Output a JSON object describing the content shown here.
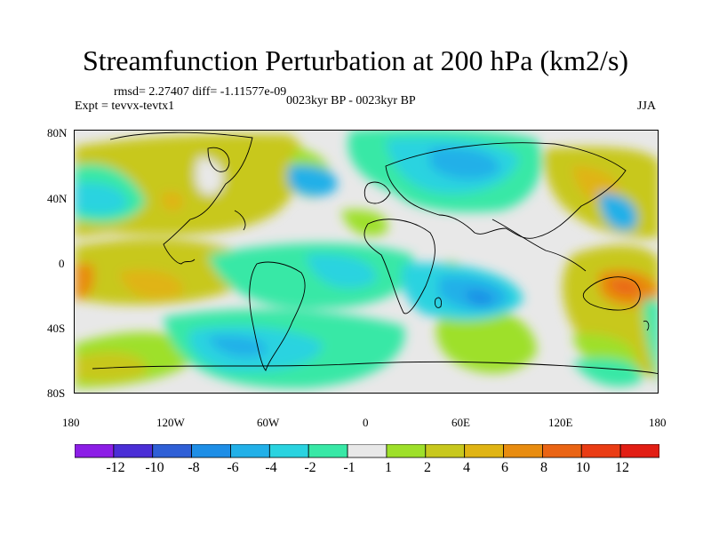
{
  "title": "Streamfunction Perturbation at 200 hPa (km2/s)",
  "stats_line": "rmsd= 2.27407 diff= -1.11577e-09",
  "experiment": "Expt = tevvx-tevtx1",
  "period": "0023kyr BP - 0023kyr BP",
  "season": "JJA",
  "axes": {
    "y_ticks": [
      "80N",
      "40N",
      "0",
      "40S",
      "80S"
    ],
    "x_ticks": [
      "180",
      "120W",
      "60W",
      "0",
      "60E",
      "120E",
      "180"
    ]
  },
  "colorbar": {
    "labels": [
      "-12",
      "-10",
      "-8",
      "-6",
      "-4",
      "-2",
      "-1",
      "1",
      "2",
      "4",
      "6",
      "8",
      "10",
      "12"
    ],
    "colors": [
      "#8c1ee6",
      "#4b2ed6",
      "#2f5fd6",
      "#1e8ee6",
      "#22b0e8",
      "#2ad3e0",
      "#38e8a6",
      "#e8e8e8",
      "#9ee02a",
      "#c8c81e",
      "#e0b414",
      "#e88c10",
      "#ea6414",
      "#ea3c14",
      "#e21e14"
    ]
  },
  "colors": {
    "background_field": "#e8e8e8",
    "coastline": "#000000"
  }
}
